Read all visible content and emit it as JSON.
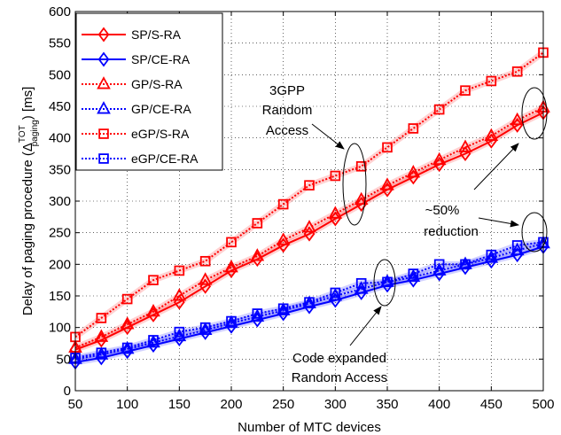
{
  "chart_data": {
    "type": "line",
    "xlabel": "Number of MTC devices",
    "ylabel": "Delay of paging procedure (Δ",
    "ylabel_sup": "TOT",
    "ylabel_sub": "paging",
    "ylabel_tail": ") [ms]",
    "xlim": [
      50,
      500
    ],
    "ylim": [
      0,
      600
    ],
    "xticks": [
      50,
      100,
      150,
      200,
      250,
      300,
      350,
      400,
      450,
      500
    ],
    "yticks": [
      0,
      50,
      100,
      150,
      200,
      250,
      300,
      350,
      400,
      450,
      500,
      550,
      600
    ],
    "grid": true,
    "legend_position": "top-left",
    "x": [
      50,
      75,
      100,
      125,
      150,
      175,
      200,
      225,
      250,
      275,
      300,
      325,
      350,
      375,
      400,
      425,
      450,
      475,
      500
    ],
    "series": [
      {
        "name": "SP/S-RA",
        "color": "#ff0000",
        "marker": "diamond",
        "dash": "solid",
        "values": [
          65,
          80,
          100,
          120,
          140,
          165,
          190,
          208,
          230,
          248,
          272,
          295,
          318,
          338,
          358,
          375,
          395,
          420,
          440
        ]
      },
      {
        "name": "SP/CE-RA",
        "color": "#0000ff",
        "marker": "diamond",
        "dash": "solid",
        "values": [
          45,
          52,
          62,
          72,
          82,
          92,
          102,
          112,
          122,
          133,
          143,
          155,
          167,
          175,
          185,
          195,
          205,
          215,
          228
        ]
      },
      {
        "name": "GP/S-RA",
        "color": "#ff0000",
        "marker": "triangle",
        "dash": "dotted",
        "values": [
          68,
          85,
          105,
          125,
          150,
          175,
          195,
          213,
          238,
          258,
          280,
          302,
          325,
          345,
          365,
          385,
          403,
          428,
          448
        ]
      },
      {
        "name": "GP/CE-RA",
        "color": "#0000ff",
        "marker": "triangle",
        "dash": "dotted",
        "values": [
          50,
          57,
          66,
          76,
          86,
          96,
          107,
          117,
          127,
          138,
          150,
          161,
          172,
          180,
          190,
          200,
          210,
          222,
          233
        ]
      },
      {
        "name": "eGP/S-RA",
        "color": "#ff0000",
        "marker": "square",
        "dash": "dotted",
        "values": [
          85,
          115,
          145,
          175,
          190,
          205,
          235,
          265,
          295,
          325,
          340,
          355,
          385,
          415,
          445,
          475,
          490,
          505,
          535
        ]
      },
      {
        "name": "eGP/CE-RA",
        "color": "#0000ff",
        "marker": "square",
        "dash": "dotted",
        "values": [
          52,
          60,
          68,
          80,
          93,
          100,
          110,
          122,
          130,
          140,
          155,
          170,
          172,
          185,
          200,
          200,
          215,
          230,
          235
        ]
      }
    ],
    "annotations": {
      "gpp_lines": [
        "3GPP",
        "Random",
        "Access"
      ],
      "reduction_lines": [
        "~50%",
        "reduction"
      ],
      "ce_lines": [
        "Code expanded",
        "Random Access"
      ]
    }
  }
}
